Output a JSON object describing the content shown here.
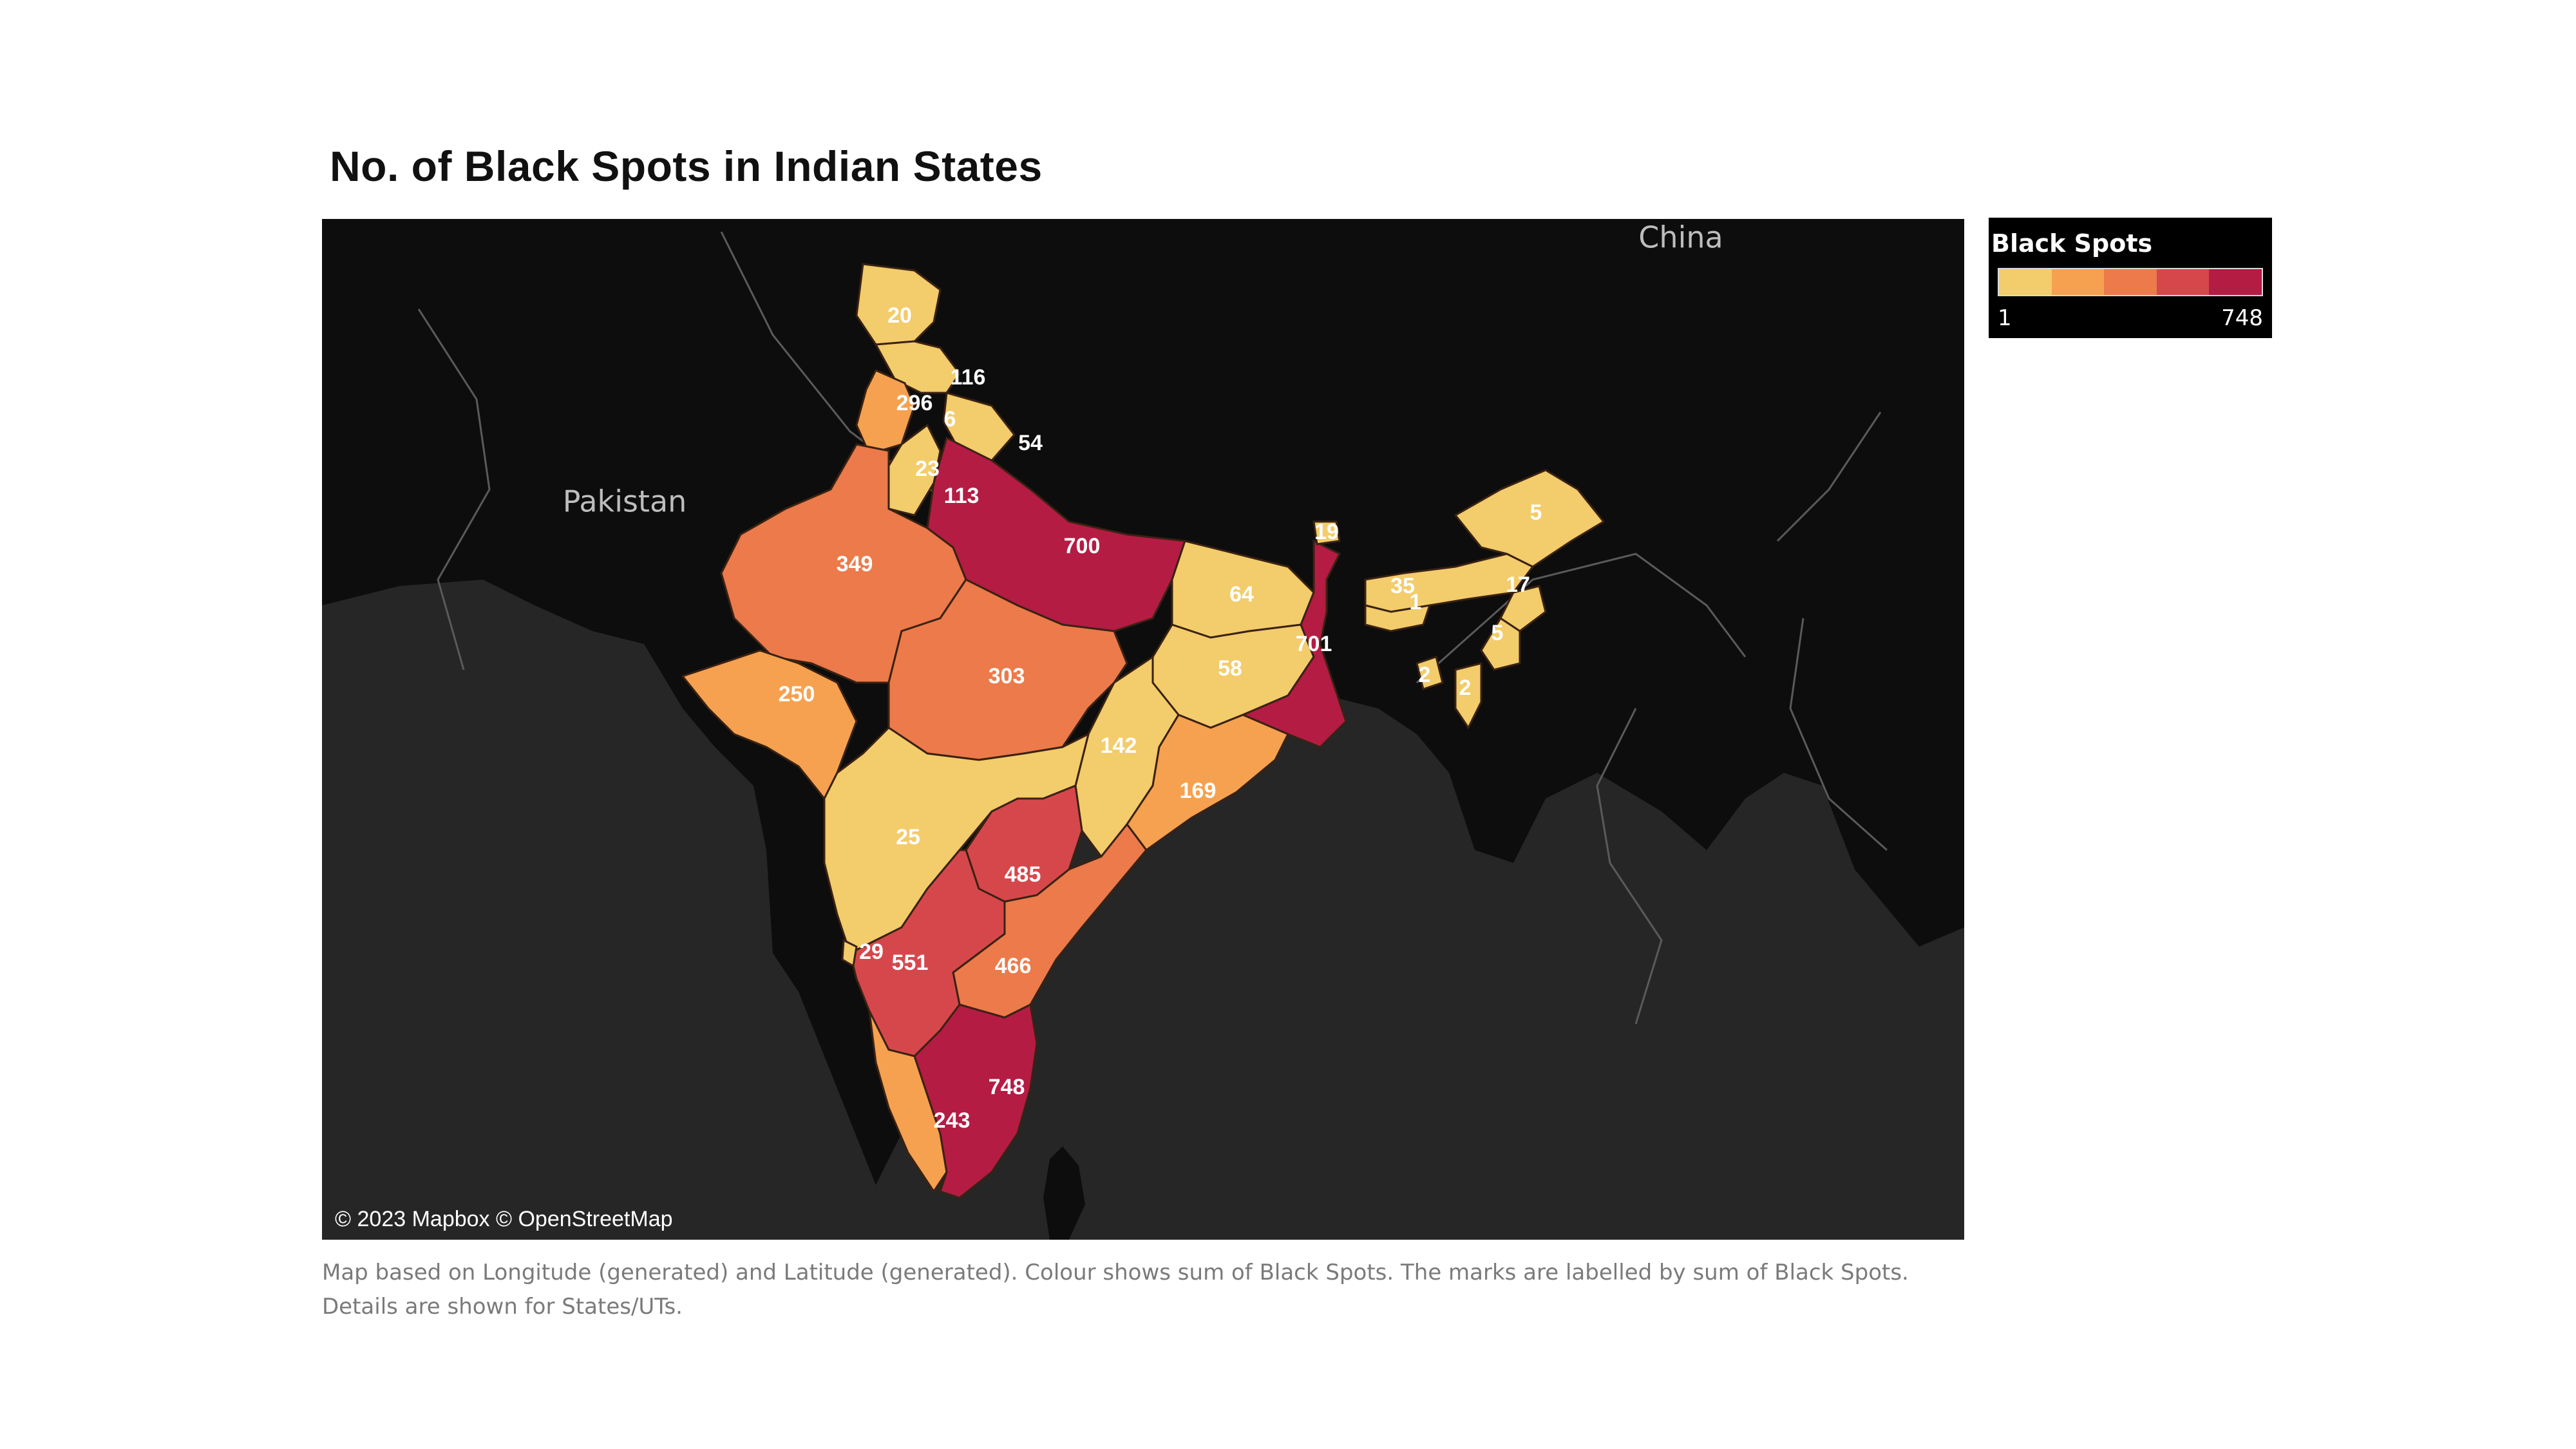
{
  "title": "No. of Black Spots in Indian States",
  "map": {
    "countries": [
      {
        "name": "China"
      },
      {
        "name": "Pakistan"
      }
    ],
    "attribution": "© 2023 Mapbox © OpenStreetMap",
    "colors": {
      "water": "#262626",
      "land": "#0d0d0d",
      "border_lines": "#5a5a5a",
      "state_border": "#2a1a12",
      "scale": [
        "#f3cc6b",
        "#f6a14f",
        "#ec7a4a",
        "#d6474c",
        "#b41c44"
      ]
    },
    "state_values": [
      20,
      116,
      296,
      6,
      54,
      23,
      113,
      700,
      349,
      303,
      250,
      142,
      64,
      58,
      701,
      19,
      35,
      1,
      17,
      5,
      5,
      2,
      2,
      169,
      25,
      485,
      551,
      466,
      748,
      243,
      29
    ]
  },
  "legend": {
    "title": "Black Spots",
    "min": "1",
    "max": "748"
  },
  "caption": {
    "line1": "Map based on Longitude (generated) and Latitude (generated).  Colour shows sum of Black Spots.  The marks are labelled by sum of Black Spots.",
    "line2": "Details are shown for States/UTs."
  }
}
